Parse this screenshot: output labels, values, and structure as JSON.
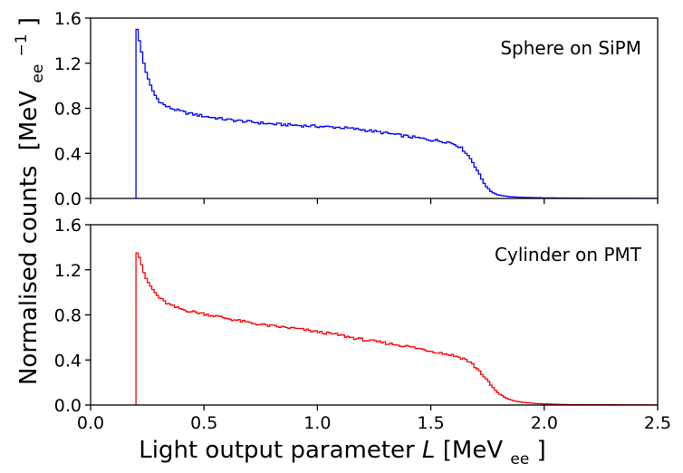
{
  "figure": {
    "ylabel_main": "Normalised counts",
    "ylabel_unit_open": "[MeV",
    "ylabel_unit_sub": "ee",
    "ylabel_unit_sup": "−1",
    "ylabel_unit_close": "]",
    "xlabel_main": "Light output parameter ",
    "xlabel_var": "L",
    "xlabel_unit_open": " [MeV",
    "xlabel_unit_sub": "ee",
    "xlabel_unit_close": "]"
  },
  "chart_data": [
    {
      "type": "histogram",
      "panel": "top",
      "annotation": "Sphere on SiPM",
      "color": "#0000ff",
      "xlim": [
        0.0,
        2.5
      ],
      "ylim": [
        0.0,
        1.6
      ],
      "xticks": [
        0.0,
        0.5,
        1.0,
        1.5,
        2.0,
        2.5
      ],
      "xtick_labels_shown": false,
      "yticks": [
        0.0,
        0.4,
        0.8,
        1.2,
        1.6
      ],
      "ytick_labels": [
        "0.0",
        "0.4",
        "0.8",
        "1.2",
        "1.6"
      ],
      "bin_width": 0.01,
      "x_start": 0.2,
      "x_end": 2.5,
      "profile_points": [
        [
          0.2,
          1.5
        ],
        [
          0.21,
          1.45
        ],
        [
          0.22,
          1.35
        ],
        [
          0.23,
          1.25
        ],
        [
          0.24,
          1.15
        ],
        [
          0.26,
          1.03
        ],
        [
          0.28,
          0.93
        ],
        [
          0.3,
          0.87
        ],
        [
          0.33,
          0.82
        ],
        [
          0.37,
          0.79
        ],
        [
          0.42,
          0.76
        ],
        [
          0.5,
          0.73
        ],
        [
          0.6,
          0.7
        ],
        [
          0.7,
          0.68
        ],
        [
          0.8,
          0.66
        ],
        [
          0.9,
          0.65
        ],
        [
          1.0,
          0.64
        ],
        [
          1.1,
          0.63
        ],
        [
          1.2,
          0.61
        ],
        [
          1.3,
          0.58
        ],
        [
          1.4,
          0.55
        ],
        [
          1.5,
          0.52
        ],
        [
          1.58,
          0.5
        ],
        [
          1.62,
          0.47
        ],
        [
          1.65,
          0.42
        ],
        [
          1.68,
          0.34
        ],
        [
          1.7,
          0.27
        ],
        [
          1.72,
          0.19
        ],
        [
          1.74,
          0.12
        ],
        [
          1.76,
          0.07
        ],
        [
          1.78,
          0.045
        ],
        [
          1.8,
          0.03
        ],
        [
          1.85,
          0.015
        ],
        [
          1.9,
          0.01
        ],
        [
          2.0,
          0.005
        ],
        [
          2.2,
          0.002
        ],
        [
          2.5,
          0.001
        ]
      ]
    },
    {
      "type": "histogram",
      "panel": "bottom",
      "annotation": "Cylinder on PMT",
      "color": "#ff0000",
      "xlim": [
        0.0,
        2.5
      ],
      "ylim": [
        0.0,
        1.6
      ],
      "xticks": [
        0.0,
        0.5,
        1.0,
        1.5,
        2.0,
        2.5
      ],
      "xtick_labels": [
        "0.0",
        "0.5",
        "1.0",
        "1.5",
        "2.0",
        "2.5"
      ],
      "yticks": [
        0.0,
        0.4,
        0.8,
        1.2,
        1.6
      ],
      "ytick_labels": [
        "0.0",
        "0.4",
        "0.8",
        "1.2",
        "1.6"
      ],
      "bin_width": 0.01,
      "x_start": 0.2,
      "x_end": 2.5,
      "profile_points": [
        [
          0.2,
          1.35
        ],
        [
          0.21,
          1.34
        ],
        [
          0.22,
          1.28
        ],
        [
          0.23,
          1.21
        ],
        [
          0.24,
          1.14
        ],
        [
          0.26,
          1.07
        ],
        [
          0.28,
          1.01
        ],
        [
          0.3,
          0.96
        ],
        [
          0.33,
          0.91
        ],
        [
          0.37,
          0.87
        ],
        [
          0.42,
          0.84
        ],
        [
          0.5,
          0.81
        ],
        [
          0.6,
          0.77
        ],
        [
          0.7,
          0.73
        ],
        [
          0.8,
          0.7
        ],
        [
          0.9,
          0.68
        ],
        [
          1.0,
          0.65
        ],
        [
          1.1,
          0.62
        ],
        [
          1.2,
          0.58
        ],
        [
          1.3,
          0.55
        ],
        [
          1.4,
          0.52
        ],
        [
          1.5,
          0.48
        ],
        [
          1.6,
          0.44
        ],
        [
          1.65,
          0.41
        ],
        [
          1.68,
          0.37
        ],
        [
          1.7,
          0.33
        ],
        [
          1.72,
          0.29
        ],
        [
          1.74,
          0.24
        ],
        [
          1.76,
          0.19
        ],
        [
          1.78,
          0.14
        ],
        [
          1.8,
          0.1
        ],
        [
          1.83,
          0.065
        ],
        [
          1.86,
          0.04
        ],
        [
          1.9,
          0.025
        ],
        [
          1.95,
          0.015
        ],
        [
          2.0,
          0.01
        ],
        [
          2.1,
          0.004
        ],
        [
          2.5,
          0.001
        ]
      ]
    }
  ]
}
